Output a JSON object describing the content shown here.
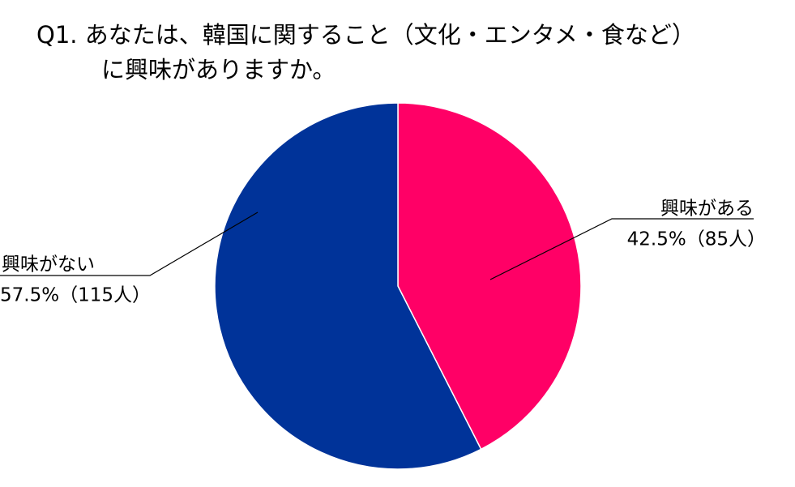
{
  "chart_data": {
    "type": "pie",
    "title": [
      "Q1. あなたは、韓国に関すること（文化・エンタメ・食など）",
      "に興味がありますか。"
    ],
    "categories": [
      "興味がある",
      "興味がない"
    ],
    "values": [
      42.5,
      57.5
    ],
    "value_labels": [
      "42.5%（85人）",
      "57.5%（115人）"
    ],
    "colors": [
      "#ff0066",
      "#003399"
    ]
  }
}
